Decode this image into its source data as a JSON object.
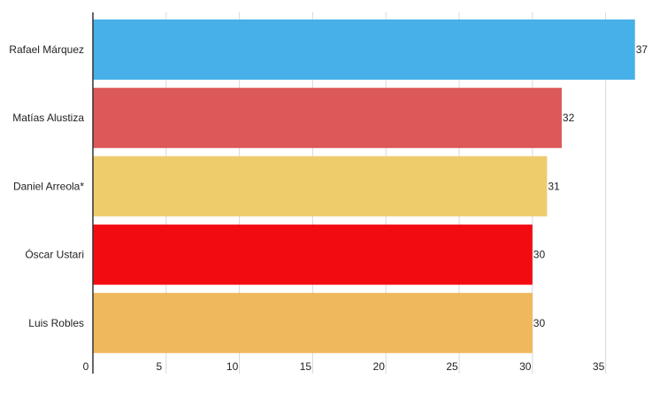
{
  "chart_data": {
    "type": "bar",
    "orientation": "horizontal",
    "categories": [
      "Rafael Márquez",
      "Matías Alustiza",
      "Daniel Arreola*",
      "Óscar Ustari",
      "Luis Robles"
    ],
    "values": [
      37,
      32,
      31,
      30,
      30
    ],
    "colors": [
      "#47b0e8",
      "#dd5858",
      "#eecb6b",
      "#f30b12",
      "#f0b85c"
    ],
    "xlim": [
      0,
      37.5
    ],
    "xticks": [
      0,
      5,
      10,
      15,
      20,
      25,
      30,
      35
    ],
    "grid": true,
    "title": "",
    "xlabel": "",
    "ylabel": ""
  }
}
